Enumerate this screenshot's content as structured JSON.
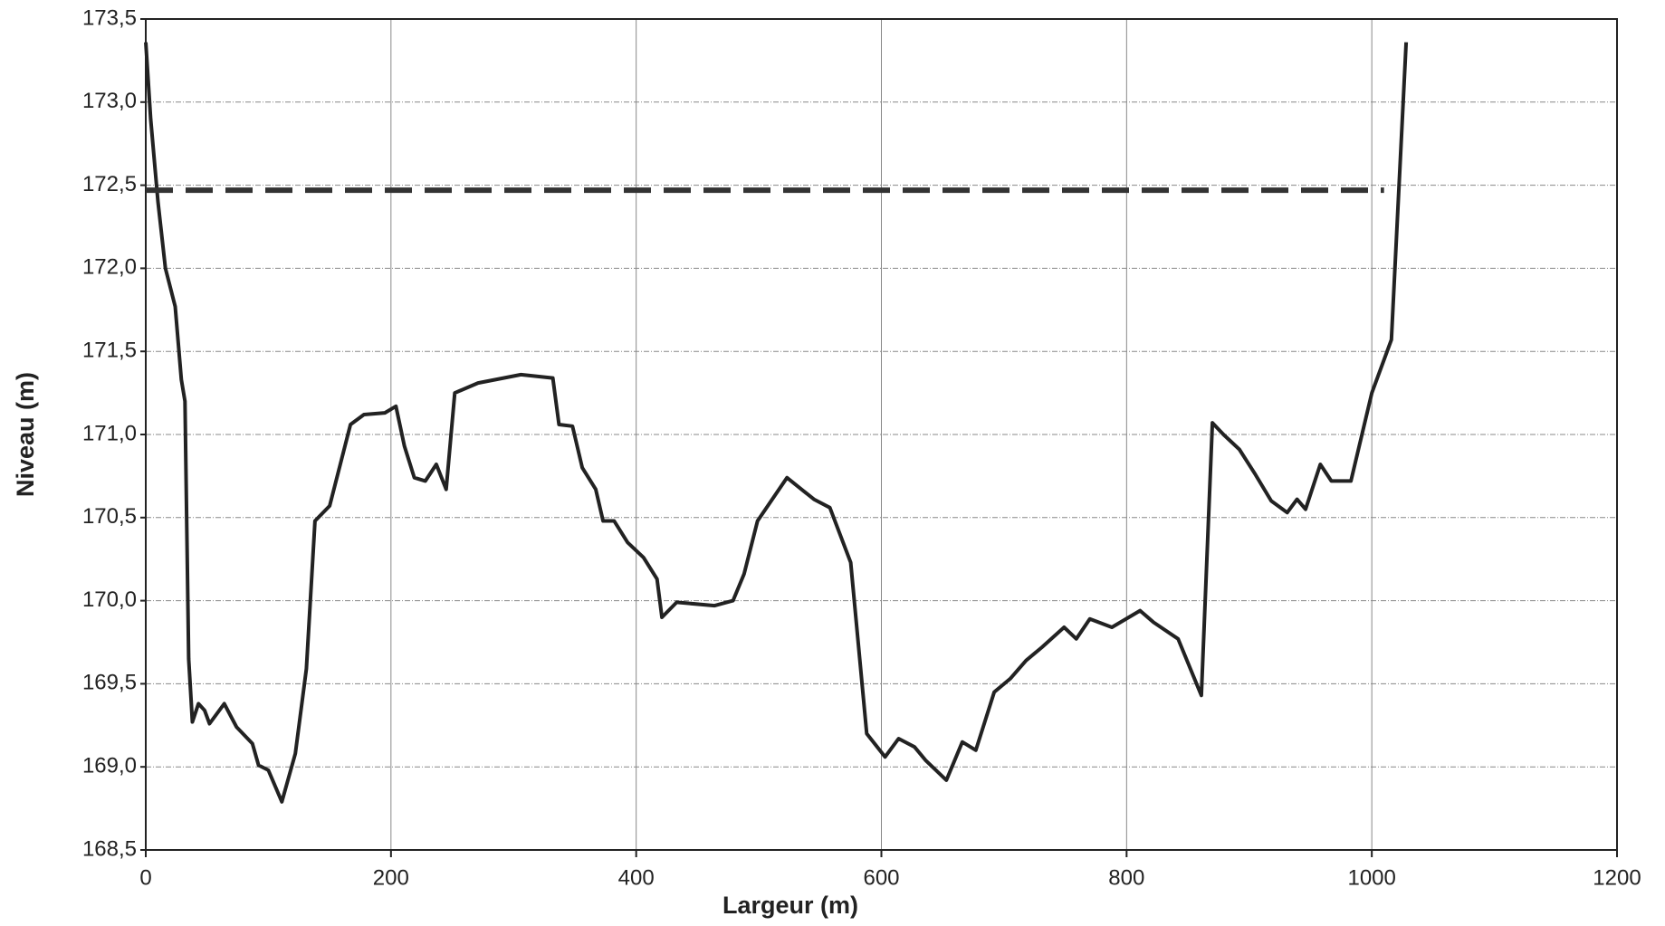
{
  "chart_data": {
    "type": "line",
    "xlabel": "Largeur (m)",
    "ylabel": "Niveau (m)",
    "xlim": [
      0,
      1200
    ],
    "xticks": [
      0,
      200,
      400,
      600,
      800,
      1000,
      1200
    ],
    "ylim": [
      168.5,
      173.5
    ],
    "yticks": [
      {
        "value": 168.5,
        "label": "168,5"
      },
      {
        "value": 169,
        "label": "169,0"
      },
      {
        "value": 169.5,
        "label": "169,5"
      },
      {
        "value": 170,
        "label": "170,0"
      },
      {
        "value": 170.5,
        "label": "170,5"
      },
      {
        "value": 171,
        "label": "171,0"
      },
      {
        "value": 171.5,
        "label": "171,5"
      },
      {
        "value": 172,
        "label": "172,0"
      },
      {
        "value": 172.5,
        "label": "172,5"
      },
      {
        "value": 173,
        "label": "173,0"
      },
      {
        "value": 173.5,
        "label": "173,5"
      }
    ],
    "grid": true,
    "series": [
      {
        "color": "#222222",
        "style": "solid",
        "x": [
          0,
          4,
          10,
          16,
          24,
          29,
          32,
          35,
          38,
          43,
          48,
          52,
          64,
          74,
          87,
          92,
          100,
          111,
          122,
          131,
          138,
          150,
          167,
          178,
          195,
          204,
          211,
          219,
          228,
          237,
          245,
          252,
          271,
          306,
          332,
          337,
          348,
          356,
          367,
          373,
          382,
          393,
          406,
          417,
          421,
          433,
          464,
          479,
          488,
          499,
          523,
          545,
          558,
          575,
          588,
          603,
          614,
          627,
          636,
          653,
          666,
          677,
          692,
          705,
          718,
          731,
          749,
          759,
          770,
          788,
          811,
          822,
          842,
          861,
          870,
          879,
          892,
          905,
          918,
          931,
          939,
          946,
          958,
          967,
          983,
          1000,
          1016,
          1028
        ],
        "values": [
          173.36,
          172.9,
          172.4,
          172.0,
          171.77,
          171.33,
          171.2,
          169.65,
          169.27,
          169.38,
          169.34,
          169.26,
          169.38,
          169.24,
          169.14,
          169.01,
          168.98,
          168.79,
          169.08,
          169.59,
          170.48,
          170.57,
          171.06,
          171.12,
          171.13,
          171.17,
          170.93,
          170.74,
          170.72,
          170.82,
          170.67,
          171.25,
          171.31,
          171.36,
          171.34,
          171.06,
          171.05,
          170.8,
          170.67,
          170.48,
          170.48,
          170.35,
          170.26,
          170.13,
          169.9,
          169.99,
          169.97,
          170.0,
          170.16,
          170.48,
          170.74,
          170.61,
          170.56,
          170.23,
          169.2,
          169.06,
          169.17,
          169.12,
          169.04,
          168.92,
          169.15,
          169.1,
          169.45,
          169.53,
          169.64,
          169.72,
          169.84,
          169.77,
          169.89,
          169.84,
          169.94,
          169.87,
          169.77,
          169.43,
          171.07,
          171.0,
          170.91,
          170.76,
          170.6,
          170.53,
          170.61,
          170.55,
          170.82,
          170.72,
          170.72,
          171.25,
          171.57,
          173.36
        ]
      },
      {
        "color": "#333333",
        "style": "dashed",
        "x": [
          0,
          1010
        ],
        "values": [
          172.47,
          172.47
        ]
      }
    ]
  }
}
